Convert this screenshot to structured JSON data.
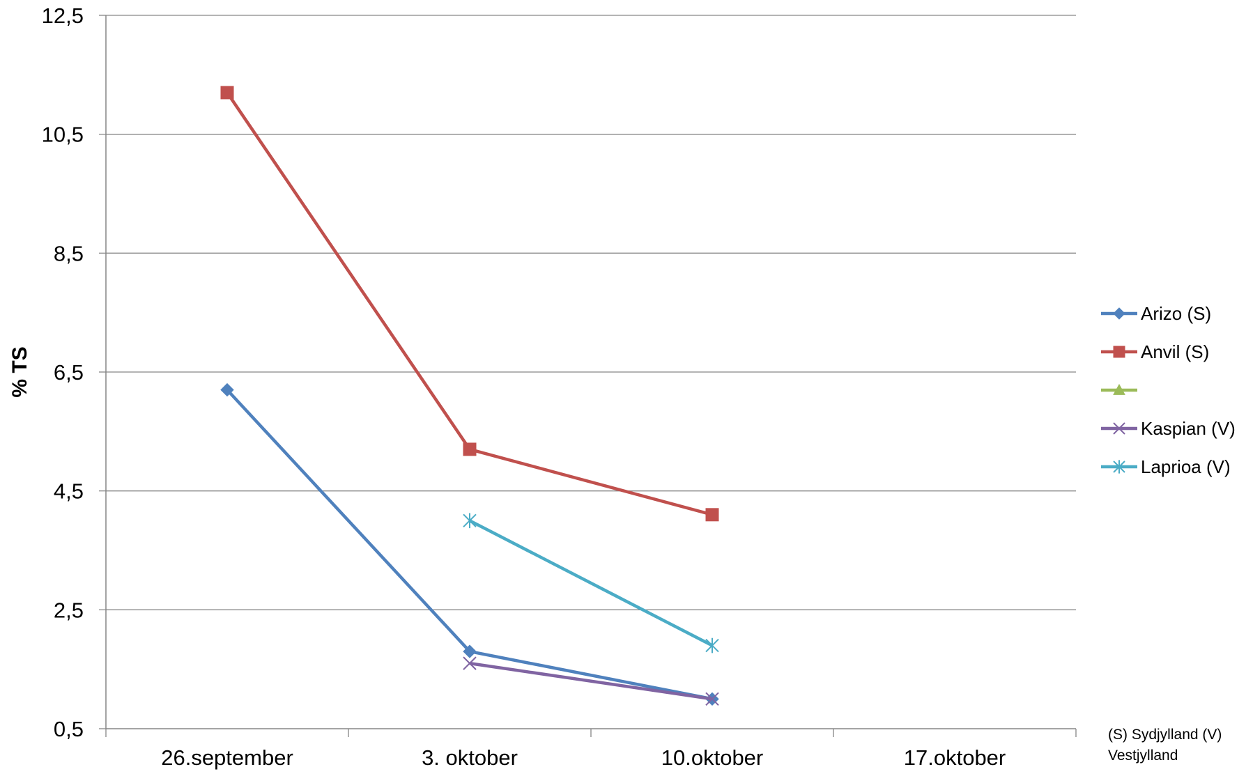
{
  "chart_data": {
    "type": "line",
    "ylabel": "% TS",
    "xlabel": "",
    "categories": [
      "26.september",
      "3. oktober",
      "10.oktober",
      "17.oktober"
    ],
    "yticks": [
      "0,5",
      "2,5",
      "4,5",
      "6,5",
      "8,5",
      "10,5",
      "12,5"
    ],
    "ylim": [
      0.5,
      12.5
    ],
    "grid": true,
    "legend_position": "right",
    "series": [
      {
        "name": "Arizo (S)",
        "color": "#4F81BD",
        "marker": "diamond",
        "values": [
          6.2,
          1.8,
          1.0,
          null
        ]
      },
      {
        "name": "Anvil (S)",
        "color": "#C0504D",
        "marker": "square",
        "values": [
          11.2,
          5.2,
          4.1,
          null
        ]
      },
      {
        "name": "",
        "color": "#9BBB59",
        "marker": "triangle",
        "values": [
          null,
          null,
          null,
          null
        ]
      },
      {
        "name": "Kaspian (V)",
        "color": "#8064A2",
        "marker": "x",
        "values": [
          null,
          1.6,
          1.0,
          null
        ]
      },
      {
        "name": "Laprioa (V)",
        "color": "#4BACC6",
        "marker": "star",
        "values": [
          null,
          4.0,
          1.9,
          null
        ]
      }
    ],
    "note": "(S) Sydjylland (V) Vestjylland"
  }
}
